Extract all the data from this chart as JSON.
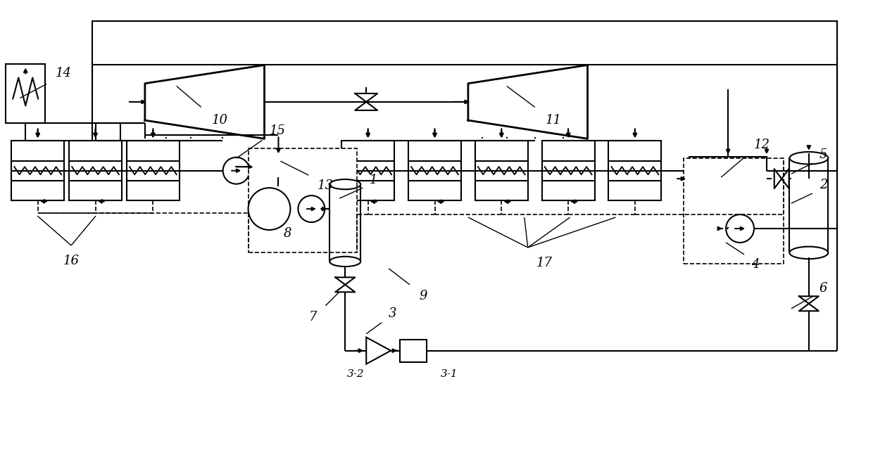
{
  "bg": "#ffffff",
  "lc": "#000000",
  "lw": 1.5,
  "lw_thick": 2.0,
  "lw_dash": 1.2,
  "fig_w": 12.4,
  "fig_h": 6.57,
  "dpi": 100
}
